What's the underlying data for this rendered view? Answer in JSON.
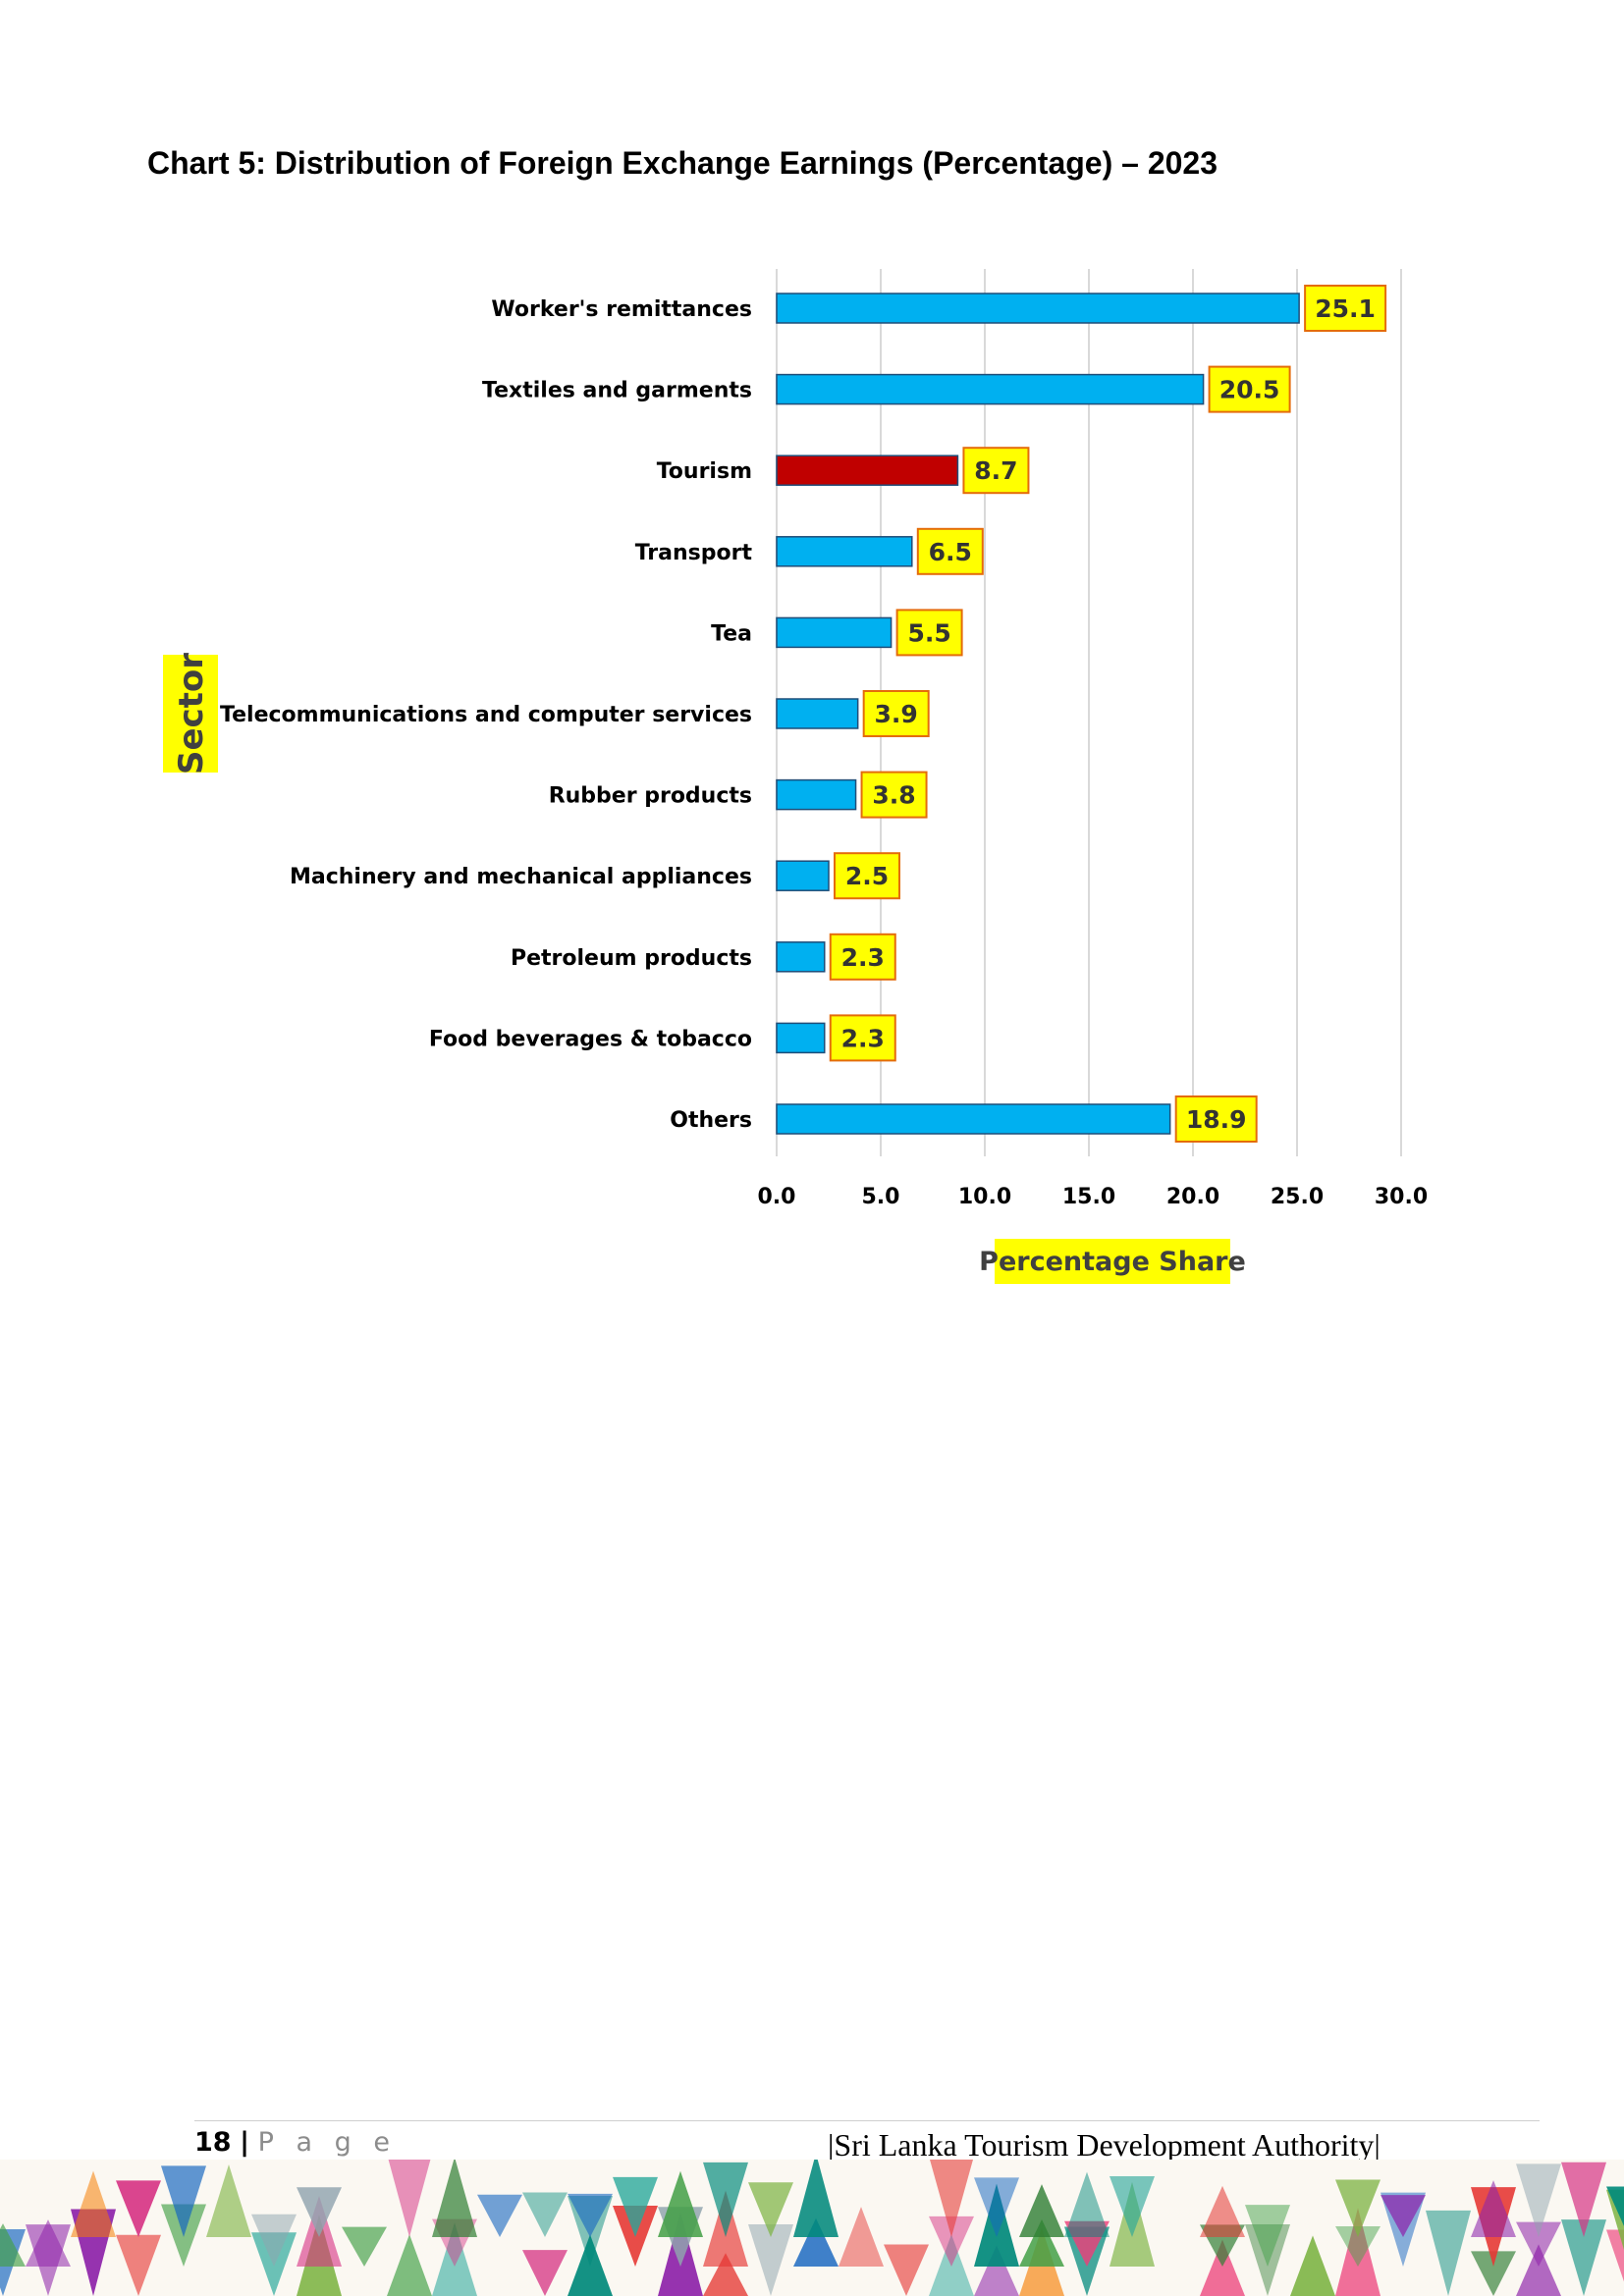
{
  "title": "Chart 5: Distribution of Foreign Exchange Earnings (Percentage) – 2023",
  "chart_data": {
    "type": "bar",
    "orientation": "horizontal",
    "categories": [
      "Worker's remittances",
      "Textiles and garments",
      "Tourism",
      "Transport",
      "Tea",
      "Telecommunications and computer services",
      "Rubber products",
      "Machinery and mechanical appliances",
      "Petroleum products",
      "Food beverages & tobacco",
      "Others"
    ],
    "values": [
      25.1,
      20.5,
      8.7,
      6.5,
      5.5,
      3.9,
      3.8,
      2.5,
      2.3,
      2.3,
      18.9
    ],
    "data_labels": [
      "25.1",
      "20.5",
      "8.7",
      "6.5",
      "5.5",
      "3.9",
      "3.8",
      "2.5",
      "2.3",
      "2.3",
      "18.9"
    ],
    "highlight_index": 2,
    "xlabel": "Percentage Share",
    "ylabel": "Sector",
    "xlim": [
      0,
      30
    ],
    "xticks": [
      0,
      5,
      10,
      15,
      20,
      25,
      30
    ],
    "xtick_labels": [
      "0.0",
      "5.0",
      "10.0",
      "15.0",
      "20.0",
      "25.0",
      "30.0"
    ],
    "grid": "vertical",
    "legend": "none",
    "colors": {
      "bar": "#00b0f0",
      "bar_highlight": "#c00000",
      "bar_border": "#1f4e79",
      "label_fill": "#ffff00",
      "label_border": "#e46c0a",
      "axis_title_bg": "#ffff00",
      "axis_title_text": "#404040",
      "gridline": "#d9d9d9"
    }
  },
  "footer": {
    "page_number": "18",
    "separator": "|",
    "page_word": "P a g e",
    "organization": "|Sri Lanka Tourism Development Authority|"
  }
}
